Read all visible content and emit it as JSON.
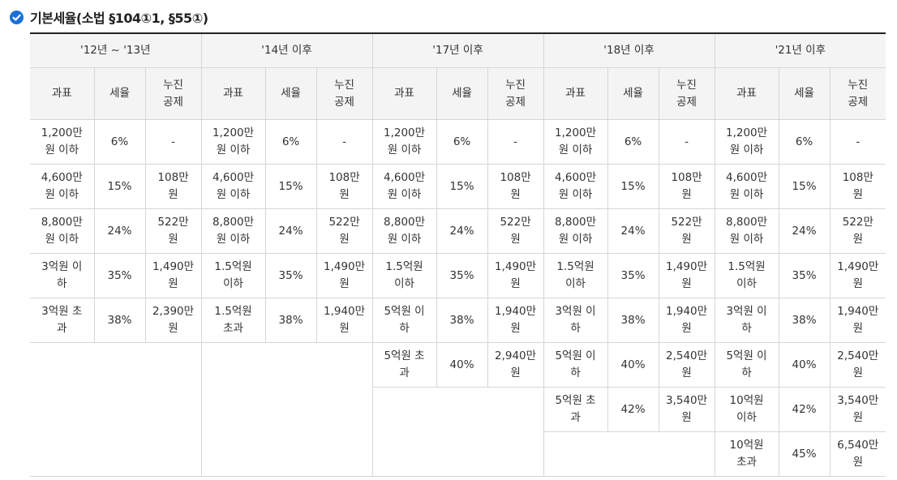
{
  "title": "기본세율(소법 §104①1, §55①)",
  "periods": [
    "'12년 ~ '13년",
    "'14년 이후",
    "'17년 이후",
    "'18년 이후",
    "'21년 이후"
  ],
  "subheaders": {
    "base": "과표",
    "rate": "세율",
    "deduction": "누진\n공제"
  },
  "rows": [
    [
      [
        "1,200만\n원 이하",
        "6%",
        "-"
      ],
      [
        "1,200만\n원 이하",
        "6%",
        "-"
      ],
      [
        "1,200만\n원 이하",
        "6%",
        "-"
      ],
      [
        "1,200만\n원 이하",
        "6%",
        "-"
      ],
      [
        "1,200만\n원 이하",
        "6%",
        "-"
      ]
    ],
    [
      [
        "4,600만\n원 이하",
        "15%",
        "108만\n원"
      ],
      [
        "4,600만\n원 이하",
        "15%",
        "108만\n원"
      ],
      [
        "4,600만\n원 이하",
        "15%",
        "108만\n원"
      ],
      [
        "4,600만\n원 이하",
        "15%",
        "108만\n원"
      ],
      [
        "4,600만\n원 이하",
        "15%",
        "108만\n원"
      ]
    ],
    [
      [
        "8,800만\n원 이하",
        "24%",
        "522만\n원"
      ],
      [
        "8,800만\n원 이하",
        "24%",
        "522만\n원"
      ],
      [
        "8,800만\n원 이하",
        "24%",
        "522만\n원"
      ],
      [
        "8,800만\n원 이하",
        "24%",
        "522만\n원"
      ],
      [
        "8,800만\n원 이하",
        "24%",
        "522만\n원"
      ]
    ],
    [
      [
        "3억원 이\n하",
        "35%",
        "1,490만\n원"
      ],
      [
        "1.5억원\n이하",
        "35%",
        "1,490만\n원"
      ],
      [
        "1.5억원\n이하",
        "35%",
        "1,490만\n원"
      ],
      [
        "1.5억원\n이하",
        "35%",
        "1,490만\n원"
      ],
      [
        "1.5억원\n이하",
        "35%",
        "1,490만\n원"
      ]
    ],
    [
      [
        "3억원 초\n과",
        "38%",
        "2,390만\n원"
      ],
      [
        "1.5억원\n초과",
        "38%",
        "1,940만\n원"
      ],
      [
        "5억원 이\n하",
        "38%",
        "1,940만\n원"
      ],
      [
        "3억원 이\n하",
        "38%",
        "1,940만\n원"
      ],
      [
        "3억원 이\n하",
        "38%",
        "1,940만\n원"
      ]
    ],
    [
      null,
      null,
      [
        "5억원 초\n과",
        "40%",
        "2,940만\n원"
      ],
      [
        "5억원 이\n하",
        "40%",
        "2,540만\n원"
      ],
      [
        "5억원 이\n하",
        "40%",
        "2,540만\n원"
      ]
    ],
    [
      null,
      null,
      null,
      [
        "5억원 초\n과",
        "42%",
        "3,540만\n원"
      ],
      [
        "10억원\n이하",
        "42%",
        "3,540만\n원"
      ]
    ],
    [
      null,
      null,
      null,
      null,
      [
        "10억원\n초과",
        "45%",
        "6,540만\n원"
      ]
    ]
  ]
}
